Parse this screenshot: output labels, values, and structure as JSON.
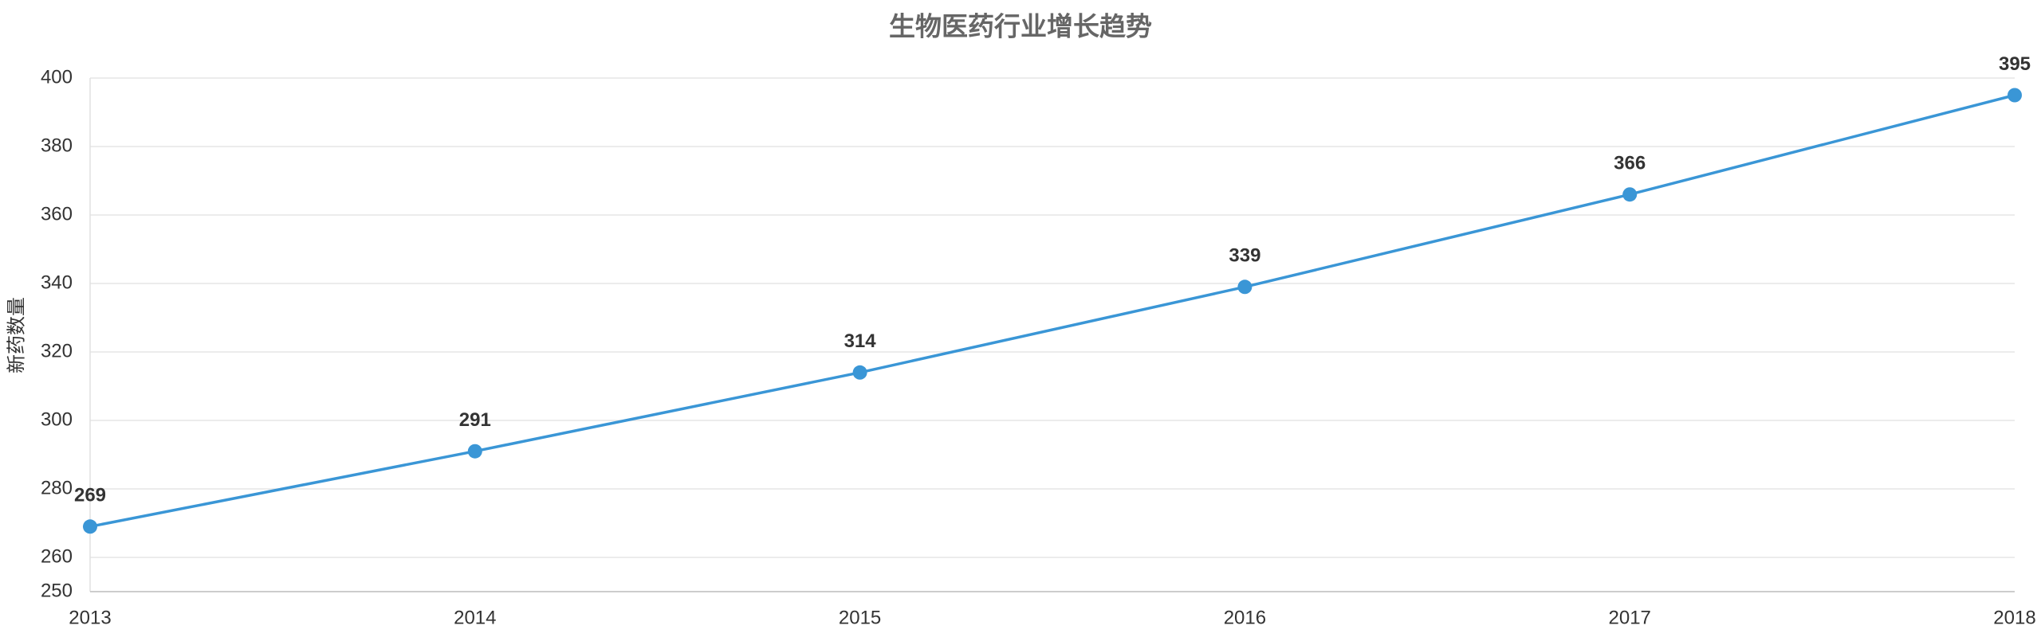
{
  "chart_data": {
    "type": "line",
    "title": "生物医药行业增长趋势",
    "y_label": "新药数量",
    "x": [
      2013,
      2014,
      2015,
      2016,
      2017,
      2018
    ],
    "xlim": [
      2013,
      2018
    ],
    "xticks": [
      2013,
      2014,
      2015,
      2016,
      2017,
      2018
    ],
    "series": [
      {
        "color": "#3a96d6",
        "values": [
          269,
          291,
          314,
          339,
          366,
          395
        ]
      }
    ],
    "ylim": [
      250,
      400
    ],
    "yticks": [
      250,
      260,
      280,
      300,
      320,
      340,
      360,
      380,
      400
    ],
    "grid": true
  }
}
